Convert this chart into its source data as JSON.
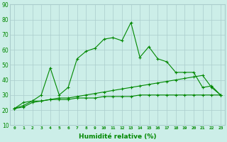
{
  "title": "",
  "xlabel": "Humidité relative (%)",
  "ylabel": "",
  "x_ticks": [
    0,
    1,
    2,
    3,
    4,
    5,
    6,
    7,
    8,
    9,
    10,
    11,
    12,
    13,
    14,
    15,
    16,
    17,
    18,
    19,
    20,
    21,
    22,
    23
  ],
  "xlim": [
    -0.5,
    23.5
  ],
  "ylim": [
    10,
    90
  ],
  "y_ticks": [
    10,
    20,
    30,
    40,
    50,
    60,
    70,
    80,
    90
  ],
  "background_color": "#cceee8",
  "grid_color": "#aacccc",
  "line_color": "#008800",
  "series": [
    {
      "x": [
        0,
        1,
        2,
        3,
        4,
        5,
        6,
        7,
        8,
        9,
        10,
        11,
        12,
        13,
        14,
        15,
        16,
        17,
        18,
        19,
        20,
        21,
        22,
        23
      ],
      "y": [
        21,
        25,
        26,
        30,
        48,
        30,
        35,
        54,
        59,
        61,
        67,
        68,
        66,
        78,
        55,
        62,
        54,
        52,
        45,
        45,
        45,
        35,
        36,
        30
      ]
    },
    {
      "x": [
        0,
        1,
        2,
        3,
        4,
        5,
        6,
        7,
        8,
        9,
        10,
        11,
        12,
        13,
        14,
        15,
        16,
        17,
        18,
        19,
        20,
        21,
        22,
        23
      ],
      "y": [
        21,
        23,
        26,
        26,
        27,
        28,
        28,
        29,
        30,
        31,
        32,
        33,
        34,
        35,
        36,
        37,
        38,
        39,
        40,
        41,
        42,
        43,
        35,
        30
      ]
    },
    {
      "x": [
        0,
        1,
        2,
        3,
        4,
        5,
        6,
        7,
        8,
        9,
        10,
        11,
        12,
        13,
        14,
        15,
        16,
        17,
        18,
        19,
        20,
        21,
        22,
        23
      ],
      "y": [
        21,
        22,
        25,
        26,
        27,
        27,
        27,
        28,
        28,
        28,
        29,
        29,
        29,
        29,
        30,
        30,
        30,
        30,
        30,
        30,
        30,
        30,
        30,
        30
      ]
    }
  ]
}
